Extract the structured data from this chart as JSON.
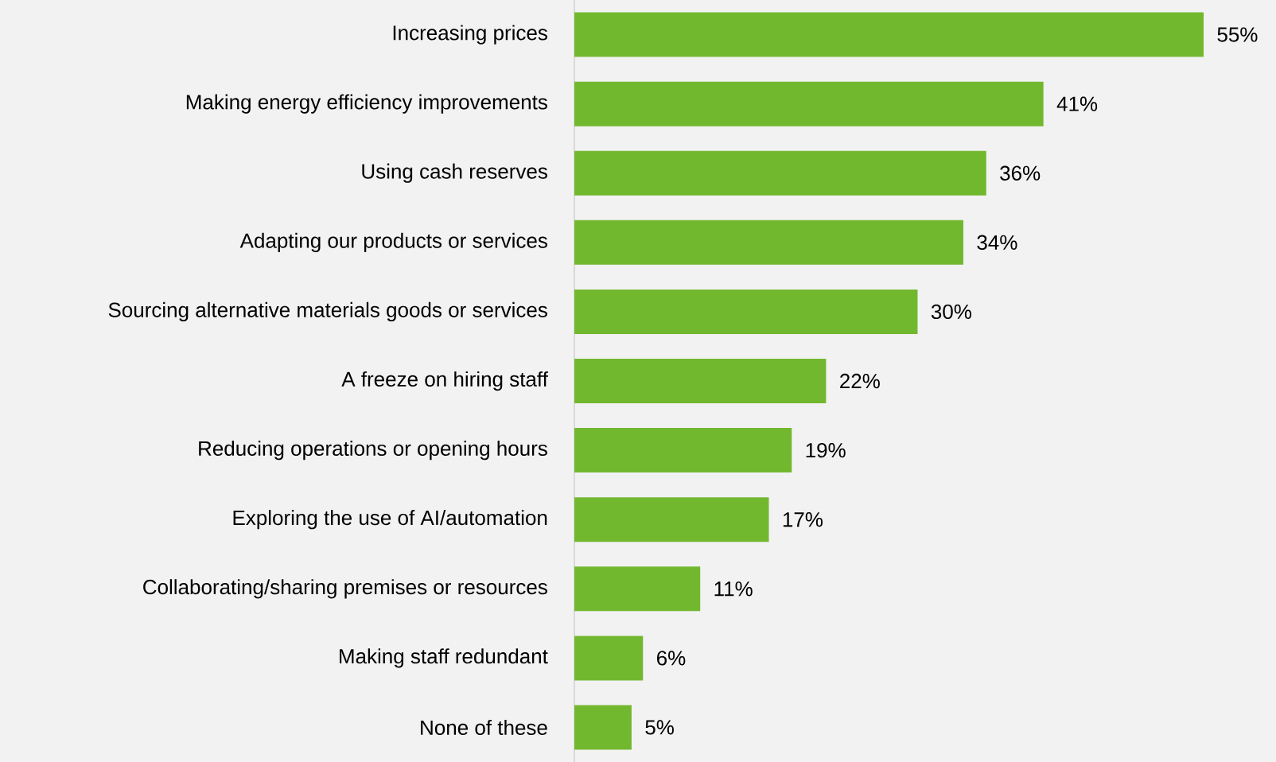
{
  "chart_data": {
    "type": "bar",
    "orientation": "horizontal",
    "categories": [
      "Increasing prices",
      "Making energy efficiency improvements",
      "Using cash reserves",
      "Adapting our products or services",
      "Sourcing alternative materials goods or services",
      "A freeze on hiring staff",
      "Reducing operations or opening hours",
      "Exploring the use of AI/automation",
      "Collaborating/sharing premises or resources",
      "Making staff redundant",
      "None of these"
    ],
    "values": [
      55,
      41,
      36,
      34,
      30,
      22,
      19,
      17,
      11,
      6,
      5
    ],
    "value_labels": [
      "55%",
      "41%",
      "36%",
      "34%",
      "30%",
      "22%",
      "19%",
      "17%",
      "11%",
      "6%",
      "5%"
    ],
    "color": "#72b82f"
  }
}
